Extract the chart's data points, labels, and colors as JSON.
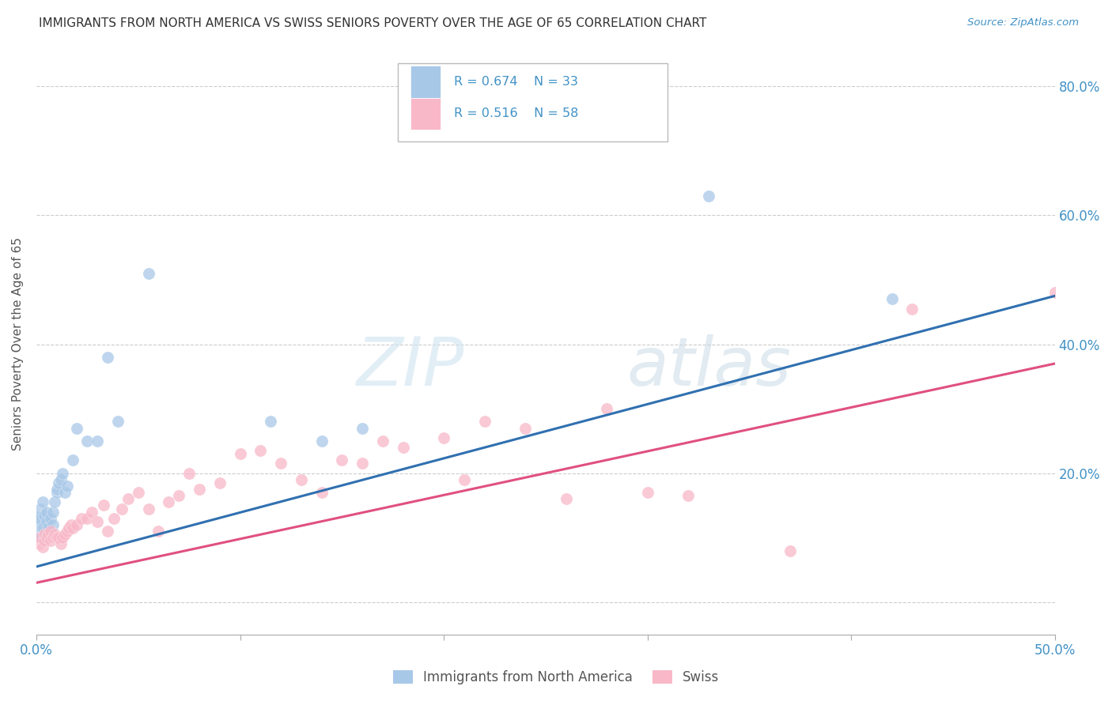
{
  "title": "IMMIGRANTS FROM NORTH AMERICA VS SWISS SENIORS POVERTY OVER THE AGE OF 65 CORRELATION CHART",
  "source": "Source: ZipAtlas.com",
  "ylabel": "Seniors Poverty Over the Age of 65",
  "xlim": [
    0.0,
    0.5
  ],
  "ylim": [
    -0.05,
    0.85
  ],
  "color_blue": "#a8c8e8",
  "color_pink": "#f8b8c8",
  "line_blue": "#3070b0",
  "line_pink": "#e05080",
  "watermark_zip": "ZIP",
  "watermark_atlas": "atlas",
  "bg_color": "#ffffff",
  "grid_color": "#cccccc",
  "title_color": "#333333",
  "axis_label_color": "#555555",
  "tick_color_blue": "#4292c6",
  "figsize": [
    14.06,
    8.92
  ],
  "blue_x": [
    0.001,
    0.001,
    0.002,
    0.002,
    0.003,
    0.003,
    0.004,
    0.005,
    0.005,
    0.006,
    0.007,
    0.008,
    0.008,
    0.009,
    0.01,
    0.01,
    0.011,
    0.012,
    0.013,
    0.014,
    0.015,
    0.018,
    0.02,
    0.025,
    0.03,
    0.035,
    0.04,
    0.055,
    0.115,
    0.14,
    0.16,
    0.33,
    0.42
  ],
  "blue_y": [
    0.12,
    0.13,
    0.1,
    0.145,
    0.115,
    0.155,
    0.135,
    0.125,
    0.14,
    0.115,
    0.13,
    0.12,
    0.14,
    0.155,
    0.17,
    0.175,
    0.185,
    0.19,
    0.2,
    0.17,
    0.18,
    0.22,
    0.27,
    0.25,
    0.25,
    0.38,
    0.28,
    0.51,
    0.28,
    0.25,
    0.27,
    0.63,
    0.47
  ],
  "blue_large_idx": 0,
  "pink_x": [
    0.001,
    0.002,
    0.003,
    0.004,
    0.004,
    0.005,
    0.006,
    0.007,
    0.007,
    0.008,
    0.009,
    0.01,
    0.011,
    0.012,
    0.013,
    0.014,
    0.015,
    0.016,
    0.017,
    0.018,
    0.02,
    0.022,
    0.025,
    0.027,
    0.03,
    0.033,
    0.035,
    0.038,
    0.042,
    0.045,
    0.05,
    0.055,
    0.06,
    0.065,
    0.07,
    0.075,
    0.08,
    0.09,
    0.1,
    0.11,
    0.12,
    0.13,
    0.14,
    0.15,
    0.16,
    0.17,
    0.18,
    0.2,
    0.21,
    0.22,
    0.24,
    0.26,
    0.28,
    0.3,
    0.32,
    0.37,
    0.43,
    0.5
  ],
  "pink_y": [
    0.09,
    0.1,
    0.085,
    0.095,
    0.105,
    0.1,
    0.105,
    0.095,
    0.11,
    0.1,
    0.105,
    0.1,
    0.1,
    0.09,
    0.1,
    0.105,
    0.11,
    0.115,
    0.12,
    0.115,
    0.12,
    0.13,
    0.13,
    0.14,
    0.125,
    0.15,
    0.11,
    0.13,
    0.145,
    0.16,
    0.17,
    0.145,
    0.11,
    0.155,
    0.165,
    0.2,
    0.175,
    0.185,
    0.23,
    0.235,
    0.215,
    0.19,
    0.17,
    0.22,
    0.215,
    0.25,
    0.24,
    0.255,
    0.19,
    0.28,
    0.27,
    0.16,
    0.3,
    0.17,
    0.165,
    0.08,
    0.455,
    0.48
  ],
  "blue_line_x": [
    0.0,
    0.5
  ],
  "blue_line_y": [
    0.055,
    0.475
  ],
  "pink_line_x": [
    0.0,
    0.5
  ],
  "pink_line_y": [
    0.03,
    0.37
  ]
}
